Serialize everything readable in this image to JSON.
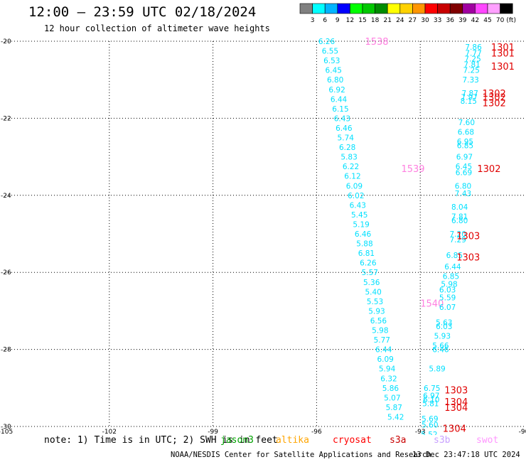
{
  "header": {
    "title": "12:00 — 23:59 UTC 02/18/2024",
    "subtitle": "12 hour collection of altimeter wave heights"
  },
  "colorbar": {
    "unit": "(ft)",
    "bins": [
      {
        "label": "3",
        "color": "#808080"
      },
      {
        "label": "6",
        "color": "#00ffff"
      },
      {
        "label": "9",
        "color": "#00b4ff"
      },
      {
        "label": "12",
        "color": "#0000ff"
      },
      {
        "label": "15",
        "color": "#00ff00"
      },
      {
        "label": "18",
        "color": "#00c800"
      },
      {
        "label": "21",
        "color": "#008c00"
      },
      {
        "label": "24",
        "color": "#ffff00"
      },
      {
        "label": "27",
        "color": "#ffd200"
      },
      {
        "label": "30",
        "color": "#ff9600"
      },
      {
        "label": "33",
        "color": "#ff0000"
      },
      {
        "label": "36",
        "color": "#c80000"
      },
      {
        "label": "39",
        "color": "#800000"
      },
      {
        "label": "42",
        "color": "#a000a0"
      },
      {
        "label": "45",
        "color": "#ff46ff"
      },
      {
        "label": "70",
        "color": "#ffa0ff"
      },
      {
        "label": "",
        "color": "#000000"
      }
    ]
  },
  "footer": {
    "note": "note: 1) Time is in UTC; 2) SWH is in feet",
    "missions": [
      {
        "label": "jason3",
        "color": "#00a000"
      },
      {
        "label": "altika",
        "color": "#ffa500"
      },
      {
        "label": "cryosat",
        "color": "#ff0000"
      },
      {
        "label": "s3a",
        "color": "#c80000"
      },
      {
        "label": "s3b",
        "color": "#c8a0ff"
      },
      {
        "label": "swot",
        "color": "#ff96ff"
      }
    ],
    "credit": "NOAA/NESDIS Center for Satellite Applications and Research",
    "stamp": "13 Dec 23:47:18 UTC 2024"
  },
  "chart_data": {
    "type": "scatter",
    "xlim": [
      -105,
      -90
    ],
    "ylim": [
      -30,
      -20
    ],
    "x_ticks": [
      -105,
      -102,
      -99,
      -96,
      -93,
      -90
    ],
    "y_ticks": [
      -20,
      -22,
      -24,
      -26,
      -28,
      -30
    ],
    "x_tick_labels": [
      "-105",
      "-102",
      "-99",
      "-96",
      "-93",
      "-90"
    ],
    "y_tick_labels": [
      "-20",
      "-22",
      "-24",
      "-26",
      "-28",
      "-30"
    ],
    "grid": true,
    "value_color": "#00e0ff",
    "time_color_swot": "#ff80e0",
    "time_color_s3a": "#e00000",
    "tracks": [
      {
        "name": "track-west",
        "points": [
          {
            "lon": -95.95,
            "lat": -20.0,
            "v": "6.26"
          },
          {
            "lon": -95.85,
            "lat": -20.25,
            "v": "6.55"
          },
          {
            "lon": -95.8,
            "lat": -20.5,
            "v": "6.53"
          },
          {
            "lon": -95.75,
            "lat": -20.75,
            "v": "6.45"
          },
          {
            "lon": -95.7,
            "lat": -21.0,
            "v": "6.80"
          },
          {
            "lon": -95.65,
            "lat": -21.25,
            "v": "6.92"
          },
          {
            "lon": -95.6,
            "lat": -21.5,
            "v": "6.44"
          },
          {
            "lon": -95.55,
            "lat": -21.75,
            "v": "6.15"
          },
          {
            "lon": -95.5,
            "lat": -22.0,
            "v": "6.43"
          },
          {
            "lon": -95.45,
            "lat": -22.25,
            "v": "6.46"
          },
          {
            "lon": -95.4,
            "lat": -22.5,
            "v": "5.74"
          },
          {
            "lon": -95.35,
            "lat": -22.75,
            "v": "6.28"
          },
          {
            "lon": -95.3,
            "lat": -23.0,
            "v": "5.83"
          },
          {
            "lon": -95.25,
            "lat": -23.25,
            "v": "6.22"
          },
          {
            "lon": -95.2,
            "lat": -23.5,
            "v": "6.12"
          },
          {
            "lon": -95.15,
            "lat": -23.75,
            "v": "6.09"
          },
          {
            "lon": -95.1,
            "lat": -24.0,
            "v": "6.02"
          },
          {
            "lon": -95.05,
            "lat": -24.25,
            "v": "6.43"
          },
          {
            "lon": -95.0,
            "lat": -24.5,
            "v": "5.45"
          },
          {
            "lon": -94.95,
            "lat": -24.75,
            "v": "5.19"
          },
          {
            "lon": -94.9,
            "lat": -25.0,
            "v": "6.46"
          },
          {
            "lon": -94.85,
            "lat": -25.25,
            "v": "5.88"
          },
          {
            "lon": -94.8,
            "lat": -25.5,
            "v": "6.81"
          },
          {
            "lon": -94.75,
            "lat": -25.75,
            "v": "6.26"
          },
          {
            "lon": -94.7,
            "lat": -26.0,
            "v": "5.57"
          },
          {
            "lon": -94.65,
            "lat": -26.25,
            "v": "5.36"
          },
          {
            "lon": -94.6,
            "lat": -26.5,
            "v": "5.40"
          },
          {
            "lon": -94.55,
            "lat": -26.75,
            "v": "5.53"
          },
          {
            "lon": -94.5,
            "lat": -27.0,
            "v": "5.93"
          },
          {
            "lon": -94.45,
            "lat": -27.25,
            "v": "6.56"
          },
          {
            "lon": -94.4,
            "lat": -27.5,
            "v": "5.98"
          },
          {
            "lon": -94.35,
            "lat": -27.75,
            "v": "5.77"
          },
          {
            "lon": -94.3,
            "lat": -28.0,
            "v": "6.44"
          },
          {
            "lon": -94.25,
            "lat": -28.25,
            "v": "6.09"
          },
          {
            "lon": -94.2,
            "lat": -28.5,
            "v": "5.94"
          },
          {
            "lon": -94.15,
            "lat": -28.75,
            "v": "6.32"
          },
          {
            "lon": -94.1,
            "lat": -29.0,
            "v": "5.86"
          },
          {
            "lon": -94.05,
            "lat": -29.25,
            "v": "5.07"
          },
          {
            "lon": -94.0,
            "lat": -29.5,
            "v": "5.87"
          },
          {
            "lon": -93.95,
            "lat": -29.75,
            "v": "5.42"
          }
        ],
        "times": [
          {
            "lon": -94.6,
            "lat": -20.0,
            "t": "1538",
            "color": "#ff80e0"
          },
          {
            "lon": -93.55,
            "lat": -23.3,
            "t": "1539",
            "color": "#ff80e0"
          },
          {
            "lon": -93.0,
            "lat": -26.8,
            "t": "1540",
            "color": "#ff80e0"
          }
        ]
      },
      {
        "name": "track-east",
        "points": [
          {
            "lon": -91.7,
            "lat": -20.15,
            "v": "7.86"
          },
          {
            "lon": -91.7,
            "lat": -20.3,
            "v": "7.77"
          },
          {
            "lon": -91.72,
            "lat": -20.45,
            "v": "7.25"
          },
          {
            "lon": -91.74,
            "lat": -20.6,
            "v": "7.81"
          },
          {
            "lon": -91.76,
            "lat": -20.75,
            "v": "7.25"
          },
          {
            "lon": -91.78,
            "lat": -21.0,
            "v": "7.33"
          },
          {
            "lon": -91.8,
            "lat": -21.35,
            "v": "7.87"
          },
          {
            "lon": -91.82,
            "lat": -21.45,
            "v": "7.97"
          },
          {
            "lon": -91.84,
            "lat": -21.55,
            "v": "8.15"
          },
          {
            "lon": -91.9,
            "lat": -22.1,
            "v": "7.60"
          },
          {
            "lon": -91.92,
            "lat": -22.35,
            "v": "6.68"
          },
          {
            "lon": -91.94,
            "lat": -22.6,
            "v": "6.95"
          },
          {
            "lon": -91.94,
            "lat": -22.7,
            "v": "6.85"
          },
          {
            "lon": -91.96,
            "lat": -23.0,
            "v": "6.97"
          },
          {
            "lon": -91.98,
            "lat": -23.25,
            "v": "6.45"
          },
          {
            "lon": -91.98,
            "lat": -23.4,
            "v": "6.69"
          },
          {
            "lon": -92.0,
            "lat": -23.75,
            "v": "6.80"
          },
          {
            "lon": -92.0,
            "lat": -23.95,
            "v": "7.43"
          },
          {
            "lon": -92.1,
            "lat": -24.3,
            "v": "8.04"
          },
          {
            "lon": -92.1,
            "lat": -24.55,
            "v": "7.81"
          },
          {
            "lon": -92.1,
            "lat": -24.65,
            "v": "6.80"
          },
          {
            "lon": -92.15,
            "lat": -25.0,
            "v": "7.20"
          },
          {
            "lon": -92.15,
            "lat": -25.15,
            "v": "7.29"
          },
          {
            "lon": -92.25,
            "lat": -25.55,
            "v": "6.85"
          },
          {
            "lon": -92.3,
            "lat": -25.85,
            "v": "6.44"
          },
          {
            "lon": -92.35,
            "lat": -26.1,
            "v": "6.85"
          },
          {
            "lon": -92.4,
            "lat": -26.3,
            "v": "5.98"
          },
          {
            "lon": -92.45,
            "lat": -26.45,
            "v": "6.03"
          },
          {
            "lon": -92.45,
            "lat": -26.65,
            "v": "5.59"
          },
          {
            "lon": -92.45,
            "lat": -26.9,
            "v": "6.07"
          },
          {
            "lon": -92.55,
            "lat": -27.3,
            "v": "5.63"
          },
          {
            "lon": -92.55,
            "lat": -27.4,
            "v": "6.03"
          },
          {
            "lon": -92.6,
            "lat": -27.65,
            "v": "5.93"
          },
          {
            "lon": -92.65,
            "lat": -27.9,
            "v": "5.66"
          },
          {
            "lon": -92.65,
            "lat": -28.0,
            "v": "6.46"
          },
          {
            "lon": -92.75,
            "lat": -28.5,
            "v": "5.89"
          },
          {
            "lon": -92.9,
            "lat": -29.0,
            "v": "6.75"
          },
          {
            "lon": -92.92,
            "lat": -29.2,
            "v": "6.97"
          },
          {
            "lon": -92.92,
            "lat": -29.3,
            "v": "6.10"
          },
          {
            "lon": -92.94,
            "lat": -29.4,
            "v": "5.81"
          },
          {
            "lon": -92.96,
            "lat": -29.8,
            "v": "5.69"
          },
          {
            "lon": -92.96,
            "lat": -29.95,
            "v": "5.60"
          },
          {
            "lon": -92.98,
            "lat": -30.2,
            "v": "5.52"
          },
          {
            "lon": -92.98,
            "lat": -30.35,
            "v": "5.93"
          }
        ],
        "times": [
          {
            "lon": -90.95,
            "lat": -20.15,
            "t": "1301",
            "color": "#e00000"
          },
          {
            "lon": -90.95,
            "lat": -20.3,
            "t": "1301",
            "color": "#e00000"
          },
          {
            "lon": -90.95,
            "lat": -20.65,
            "t": "1301",
            "color": "#e00000"
          },
          {
            "lon": -91.2,
            "lat": -21.35,
            "t": "1302",
            "color": "#e00000"
          },
          {
            "lon": -91.2,
            "lat": -21.45,
            "t": "1302",
            "color": "#e00000"
          },
          {
            "lon": -91.2,
            "lat": -21.6,
            "t": "1302",
            "color": "#e00000"
          },
          {
            "lon": -91.35,
            "lat": -23.3,
            "t": "1302",
            "color": "#e00000"
          },
          {
            "lon": -91.95,
            "lat": -25.05,
            "t": "1303",
            "color": "#e00000"
          },
          {
            "lon": -91.95,
            "lat": -25.6,
            "t": "1303",
            "color": "#e00000"
          },
          {
            "lon": -92.3,
            "lat": -29.05,
            "t": "1303",
            "color": "#e00000"
          },
          {
            "lon": -92.3,
            "lat": -29.35,
            "t": "1304",
            "color": "#e00000"
          },
          {
            "lon": -92.3,
            "lat": -29.5,
            "t": "1304",
            "color": "#e00000"
          },
          {
            "lon": -92.35,
            "lat": -30.05,
            "t": "1304",
            "color": "#e00000"
          }
        ]
      }
    ]
  }
}
